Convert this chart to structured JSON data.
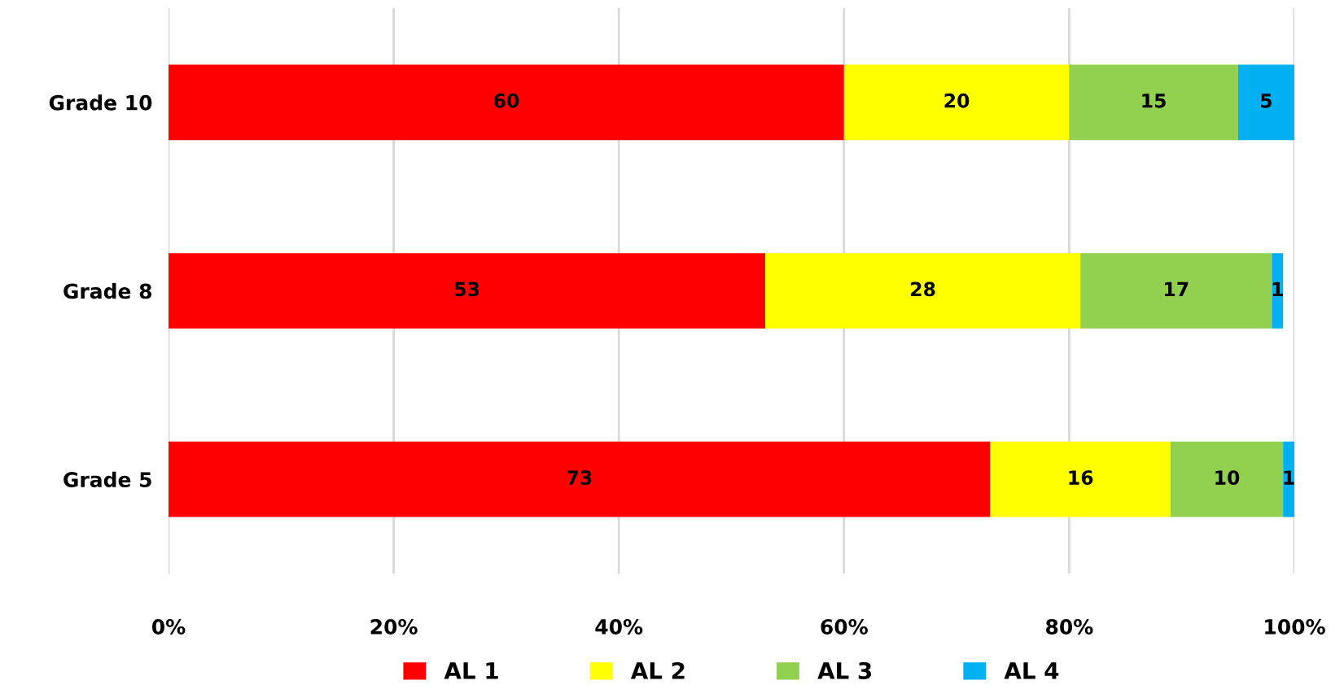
{
  "chart_data": {
    "type": "bar",
    "orientation": "horizontal",
    "stacked": true,
    "categories": [
      "Grade 10",
      "Grade 8",
      "Grade 5"
    ],
    "series": [
      {
        "name": "AL 1",
        "color": "#ff0000",
        "values": [
          60,
          53,
          73
        ]
      },
      {
        "name": "AL 2",
        "color": "#ffff00",
        "values": [
          20,
          28,
          16
        ]
      },
      {
        "name": "AL 3",
        "color": "#92d050",
        "values": [
          15,
          17,
          10
        ]
      },
      {
        "name": "AL 4",
        "color": "#00b0f0",
        "values": [
          5,
          1,
          1
        ]
      }
    ],
    "xlim": [
      0,
      100
    ],
    "xticks": [
      {
        "value": 0,
        "label": "0%"
      },
      {
        "value": 20,
        "label": "20%"
      },
      {
        "value": 40,
        "label": "40%"
      },
      {
        "value": 60,
        "label": "60%"
      },
      {
        "value": 80,
        "label": "80%"
      },
      {
        "value": 100,
        "label": "100%"
      }
    ],
    "grid": "x",
    "legend": "bottom",
    "data_labels": true
  }
}
